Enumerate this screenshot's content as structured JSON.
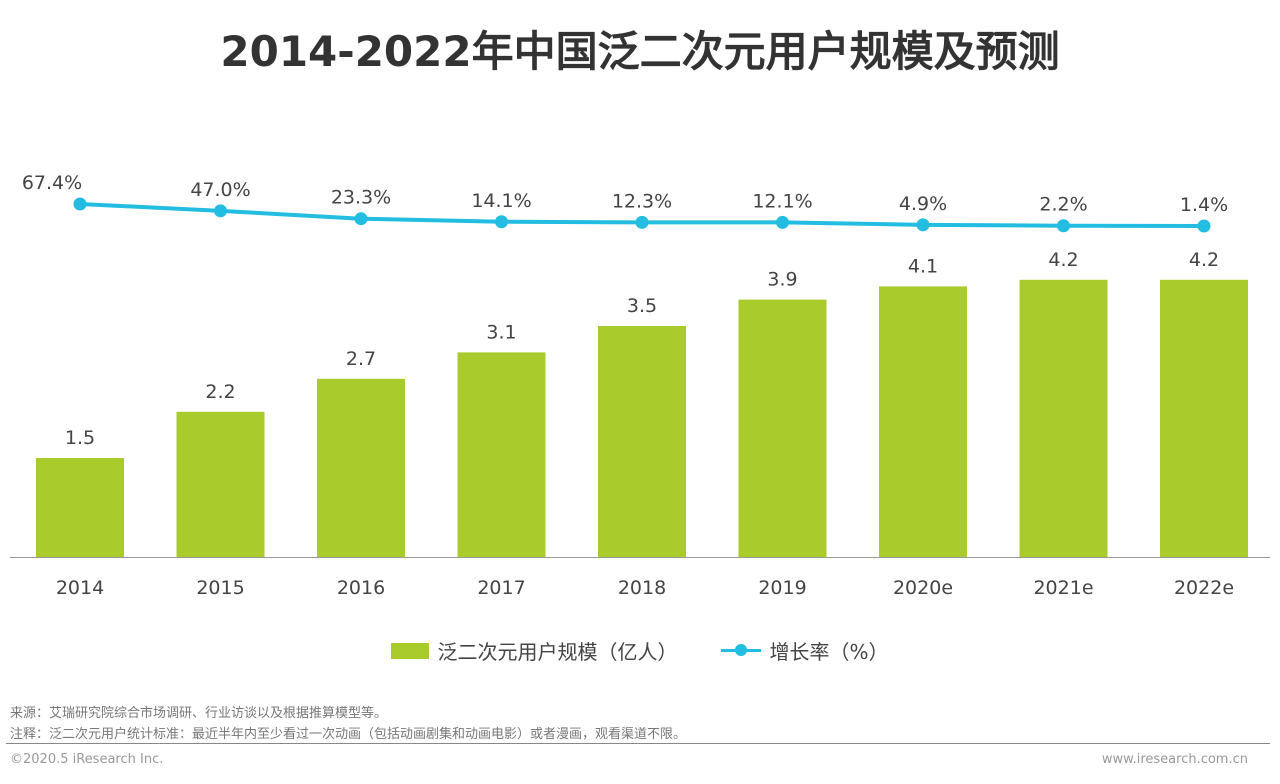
{
  "chart_data": {
    "type": "bar+line",
    "title": "2014-2022年中国泛二次元用户规模及预测",
    "categories": [
      "2014",
      "2015",
      "2016",
      "2017",
      "2018",
      "2019",
      "2020e",
      "2021e",
      "2022e"
    ],
    "series": [
      {
        "name": "泛二次元用户规模（亿人）",
        "type": "bar",
        "values": [
          1.5,
          2.2,
          2.7,
          3.1,
          3.5,
          3.9,
          4.1,
          4.2,
          4.2
        ],
        "labels": [
          "1.5",
          "2.2",
          "2.7",
          "3.1",
          "3.5",
          "3.9",
          "4.1",
          "4.2",
          "4.2"
        ],
        "color": "#a9cb2c"
      },
      {
        "name": "增长率（%）",
        "type": "line",
        "values": [
          67.4,
          47.0,
          23.3,
          14.1,
          12.3,
          12.1,
          4.9,
          2.2,
          1.4
        ],
        "labels": [
          "67.4%",
          "47.0%",
          "23.3%",
          "14.1%",
          "12.3%",
          "12.1%",
          "4.9%",
          "2.2%",
          "1.4%"
        ],
        "color": "#22bde0"
      }
    ],
    "legend_position": "bottom",
    "grid": false
  },
  "footer": {
    "source": "来源：艾瑞研究院综合市场调研、行业访谈以及根据推算模型等。",
    "note": "注释：泛二次元用户统计标准：最近半年内至少看过一次动画（包括动画剧集和动画电影）或者漫画，观看渠道不限。",
    "copyright": "©2020.5 iResearch Inc.",
    "website": "www.iresearch.com.cn"
  }
}
